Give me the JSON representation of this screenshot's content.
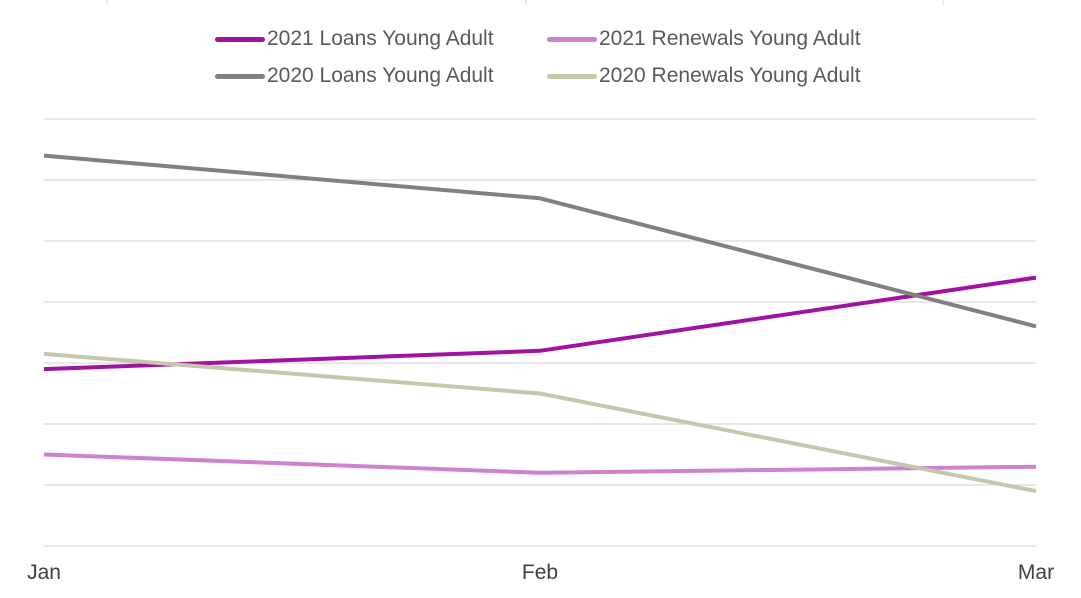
{
  "chart_data": {
    "type": "line",
    "categories": [
      "Jan",
      "Feb",
      "Mar"
    ],
    "ylim": [
      0,
      7
    ],
    "grid": true,
    "legend_position": "top",
    "series": [
      {
        "name": "2021 Loans Young Adult",
        "color": "#a0129f",
        "values": [
          2.9,
          3.2,
          4.4
        ]
      },
      {
        "name": "2021 Renewals Young Adult",
        "color": "#cd82cd",
        "values": [
          1.5,
          1.2,
          1.3
        ]
      },
      {
        "name": "2020 Loans Young Adult",
        "color": "#808080",
        "values": [
          6.4,
          5.7,
          3.6
        ]
      },
      {
        "name": "2020 Renewals Young Adult",
        "color": "#c6c7aa",
        "values": [
          3.15,
          2.5,
          0.9
        ]
      }
    ]
  }
}
